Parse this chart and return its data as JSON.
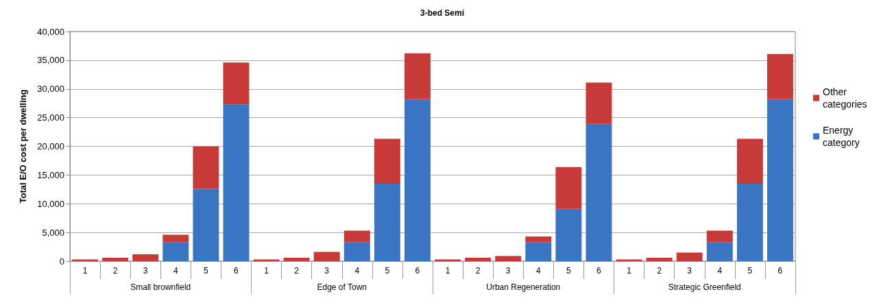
{
  "chart_data": {
    "type": "bar",
    "title": "3-bed Semi",
    "ylabel": "Total E/O cost per dwelling",
    "categories": [
      "1",
      "2",
      "3",
      "4",
      "5",
      "6",
      "1",
      "2",
      "3",
      "4",
      "5",
      "6",
      "1",
      "2",
      "3",
      "4",
      "5",
      "6",
      "1",
      "2",
      "3",
      "4",
      "5",
      "6"
    ],
    "annotations": [
      "Small brownfield",
      "Edge of Town",
      "Urban Regeneration",
      "Strategic Greenfield"
    ],
    "series": [
      {
        "name": "Energy category",
        "color": "#3a75c4",
        "values": [
          0,
          0,
          0,
          3300,
          12600,
          27300,
          0,
          0,
          0,
          3300,
          13500,
          28200,
          0,
          0,
          0,
          3300,
          9100,
          23900,
          0,
          0,
          0,
          3300,
          13500,
          28200
        ]
      },
      {
        "name": "Other categories",
        "color": "#c83a37",
        "values": [
          300,
          600,
          1200,
          1300,
          7400,
          7300,
          300,
          600,
          1600,
          2000,
          7800,
          8000,
          300,
          600,
          900,
          1000,
          7300,
          7200,
          300,
          600,
          1500,
          2000,
          7800,
          7900
        ]
      }
    ],
    "stacked": true,
    "ylim": [
      0,
      40000
    ],
    "yticks": [
      0,
      {
        "value": 5000,
        "label": "5,000"
      },
      {
        "value": 10000,
        "label": "10,000"
      },
      {
        "value": 15000,
        "label": "15,000"
      },
      {
        "value": 20000,
        "label": "20,000"
      },
      {
        "value": 25000,
        "label": "25,000"
      },
      {
        "value": 30000,
        "label": "30,000"
      },
      {
        "value": 35000,
        "label": "35,000"
      },
      {
        "value": 40000,
        "label": "40,000"
      }
    ],
    "grid": "y",
    "legend": "right"
  }
}
